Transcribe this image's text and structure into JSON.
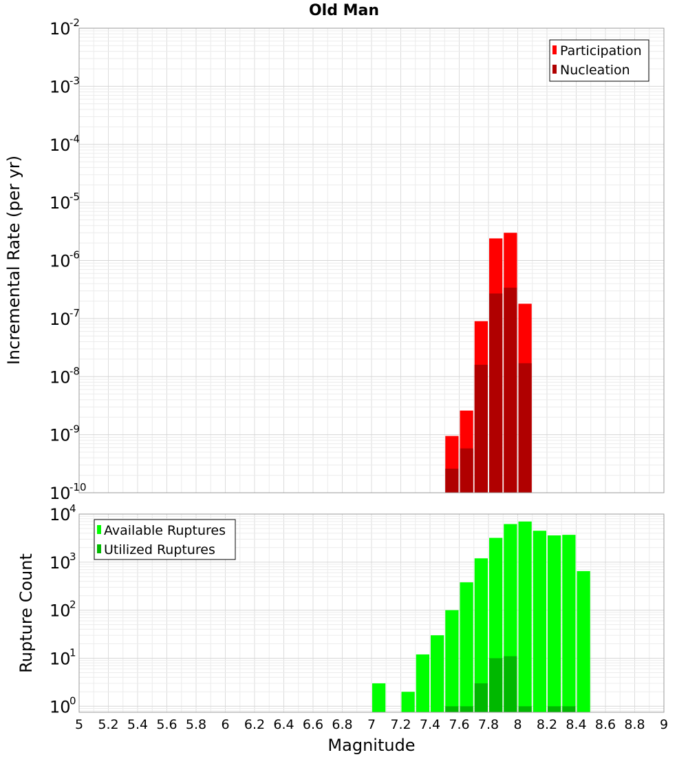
{
  "chart_data": [
    {
      "type": "bar",
      "title": "Old Man",
      "ylabel": "Incremental Rate (per yr)",
      "xlabel": "",
      "yscale": "log",
      "ylim": [
        1e-10,
        0.01
      ],
      "xlim": [
        5,
        9
      ],
      "y_ticks": [
        {
          "base": "10",
          "exp": "-2"
        },
        {
          "base": "10",
          "exp": "-3"
        },
        {
          "base": "10",
          "exp": "-4"
        },
        {
          "base": "10",
          "exp": "-5"
        },
        {
          "base": "10",
          "exp": "-6"
        },
        {
          "base": "10",
          "exp": "-7"
        },
        {
          "base": "10",
          "exp": "-8"
        },
        {
          "base": "10",
          "exp": "-9"
        },
        {
          "base": "10",
          "exp": "-10"
        }
      ],
      "grid": true,
      "legend_position": "top-right",
      "series": [
        {
          "name": "Participation",
          "color": "#ff0000",
          "x": [
            7.55,
            7.65,
            7.75,
            7.85,
            7.95,
            8.05
          ],
          "values": [
            9.5e-10,
            2.6e-09,
            9e-08,
            2.4e-06,
            3e-06,
            1.8e-07
          ]
        },
        {
          "name": "Nucleation",
          "color": "#b00000",
          "x": [
            7.55,
            7.65,
            7.75,
            7.85,
            7.95,
            8.05
          ],
          "values": [
            2.6e-10,
            5.8e-10,
            1.6e-08,
            2.7e-07,
            3.4e-07,
            1.7e-08
          ]
        }
      ]
    },
    {
      "type": "bar",
      "title": "",
      "ylabel": "Rupture Count",
      "xlabel": "Magnitude",
      "yscale": "log",
      "ylim": [
        0.75,
        10000
      ],
      "xlim": [
        5,
        9
      ],
      "x_ticks": [
        "5",
        "5.2",
        "5.4",
        "5.6",
        "5.8",
        "6",
        "6.2",
        "6.4",
        "6.6",
        "6.8",
        "7",
        "7.2",
        "7.4",
        "7.6",
        "7.8",
        "8",
        "8.2",
        "8.4",
        "8.6",
        "8.8",
        "9"
      ],
      "y_ticks": [
        {
          "base": "10",
          "exp": "4"
        },
        {
          "base": "10",
          "exp": "3"
        },
        {
          "base": "10",
          "exp": "2"
        },
        {
          "base": "10",
          "exp": "1"
        },
        {
          "base": "10",
          "exp": "0"
        }
      ],
      "grid": true,
      "legend_position": "top-left",
      "series": [
        {
          "name": "Available Ruptures",
          "color": "#00ff00",
          "x": [
            7.05,
            7.25,
            7.35,
            7.45,
            7.55,
            7.65,
            7.75,
            7.85,
            7.95,
            8.05,
            8.15,
            8.25,
            8.35,
            8.45
          ],
          "values": [
            3,
            2,
            12,
            30,
            100,
            380,
            1200,
            3200,
            6200,
            7000,
            4500,
            3600,
            3700,
            650
          ]
        },
        {
          "name": "Utilized Ruptures",
          "color": "#00b800",
          "x": [
            7.55,
            7.65,
            7.75,
            7.85,
            7.95,
            8.05,
            8.25,
            8.35
          ],
          "values": [
            1,
            1,
            3,
            10,
            11,
            1,
            1,
            1
          ]
        }
      ]
    }
  ]
}
